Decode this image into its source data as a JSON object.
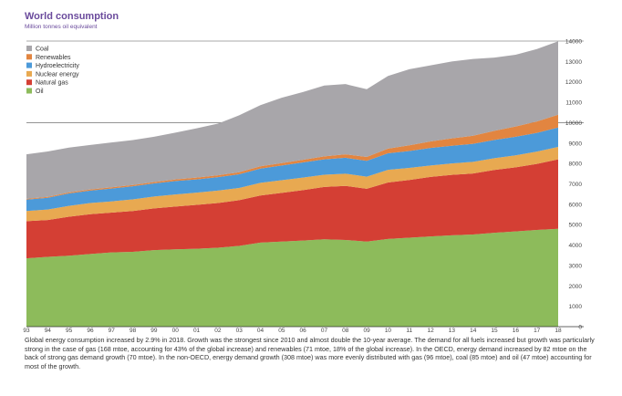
{
  "title": "World consumption",
  "subtitle": "Million tonnes oil equivalent",
  "caption": "Global energy consumption increased by 2.9% in 2018. Growth was the strongest since 2010 and almost double the 10-year average. The demand for all fuels increased but growth was particularly strong in the case of gas (168 mtoe, accounting for 43% of the global increase) and renewables (71 mtoe, 18% of the global increase). In the OECD, energy demand increased by 82 mtoe on the back of strong gas demand growth (70 mtoe). In the non-OECD, energy demand growth (308 mtoe) was more evenly distributed with gas (96 mtoe), coal (85 mtoe) and oil (47 mtoe) accounting for most of the growth.",
  "chart_data": {
    "type": "area",
    "stacked": true,
    "title": "World consumption",
    "ylabel": "Million tonnes oil equivalent",
    "ylim": [
      0,
      14000
    ],
    "yticks": [
      0,
      1000,
      2000,
      3000,
      4000,
      5000,
      6000,
      7000,
      8000,
      9000,
      10000,
      11000,
      12000,
      13000,
      14000
    ],
    "ytick_labels": [
      "0",
      "1000",
      "2000",
      "3000",
      "4000",
      "5000",
      "6000",
      "7000",
      "8000",
      "9000",
      "10000",
      "11000",
      "12000",
      "13000",
      "14000"
    ],
    "y_axis_side": "right",
    "grid": "horizontal lines at 10000 and 14000",
    "legend_position": "top-left",
    "x": [
      1993,
      1994,
      1995,
      1996,
      1997,
      1998,
      1999,
      2000,
      2001,
      2002,
      2003,
      2004,
      2005,
      2006,
      2007,
      2008,
      2009,
      2010,
      2011,
      2012,
      2013,
      2014,
      2015,
      2016,
      2017,
      2018
    ],
    "x_labels": [
      "93",
      "94",
      "95",
      "96",
      "97",
      "98",
      "99",
      "00",
      "01",
      "02",
      "03",
      "04",
      "05",
      "06",
      "07",
      "08",
      "09",
      "10",
      "11",
      "12",
      "13",
      "14",
      "15",
      "16",
      "17",
      "18"
    ],
    "series": [
      {
        "name": "Oil",
        "color": "#8dbb5b",
        "values": [
          3350,
          3420,
          3480,
          3560,
          3640,
          3670,
          3750,
          3790,
          3820,
          3870,
          3960,
          4120,
          4170,
          4220,
          4280,
          4250,
          4170,
          4300,
          4360,
          4420,
          4480,
          4520,
          4600,
          4670,
          4740,
          4800
        ]
      },
      {
        "name": "Natural gas",
        "color": "#d43f34",
        "values": [
          1820,
          1810,
          1910,
          1950,
          1950,
          2000,
          2050,
          2100,
          2150,
          2190,
          2240,
          2310,
          2390,
          2470,
          2570,
          2650,
          2590,
          2770,
          2830,
          2920,
          2960,
          2990,
          3080,
          3140,
          3240,
          3400
        ]
      },
      {
        "name": "Nuclear energy",
        "color": "#e8a951",
        "values": [
          500,
          510,
          530,
          550,
          550,
          570,
          580,
          590,
          600,
          610,
          600,
          620,
          620,
          620,
          600,
          600,
          590,
          620,
          590,
          560,
          560,
          570,
          580,
          590,
          600,
          610
        ]
      },
      {
        "name": "Hydroelectricity",
        "color": "#4c9ad9",
        "values": [
          560,
          580,
          610,
          610,
          630,
          640,
          640,
          660,
          650,
          660,
          670,
          700,
          720,
          740,
          750,
          780,
          780,
          810,
          830,
          860,
          870,
          880,
          890,
          910,
          920,
          950
        ]
      },
      {
        "name": "Renewables",
        "color": "#e28540",
        "values": [
          40,
          45,
          50,
          55,
          60,
          65,
          70,
          80,
          85,
          90,
          100,
          110,
          120,
          130,
          150,
          170,
          190,
          230,
          280,
          320,
          360,
          400,
          450,
          500,
          560,
          630
        ]
      },
      {
        "name": "Coal",
        "color": "#a8a6aa",
        "values": [
          2180,
          2220,
          2200,
          2180,
          2200,
          2200,
          2220,
          2290,
          2420,
          2530,
          2790,
          3000,
          3200,
          3320,
          3470,
          3440,
          3320,
          3560,
          3730,
          3730,
          3770,
          3760,
          3590,
          3520,
          3550,
          3600
        ]
      }
    ]
  }
}
